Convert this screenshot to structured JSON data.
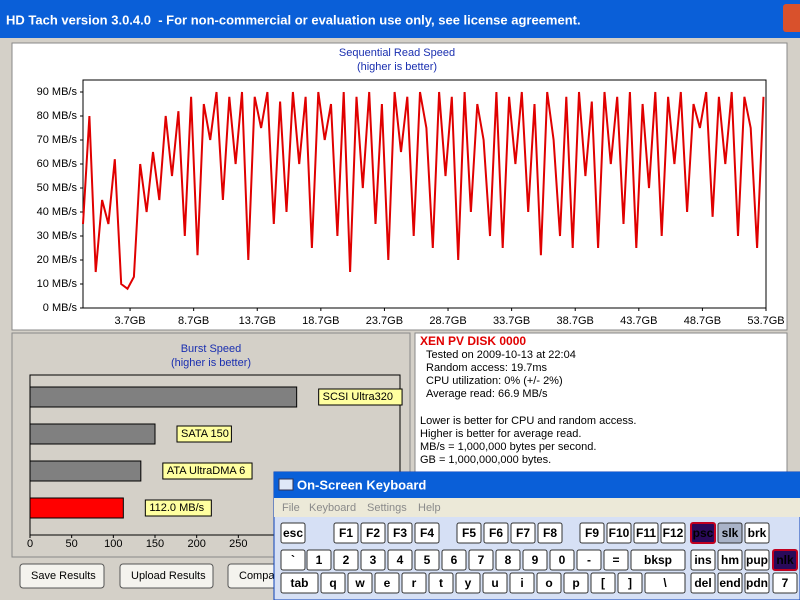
{
  "window": {
    "title": "HD Tach version 3.0.4.0  - For non-commercial or evaluation use only, see license agreement."
  },
  "chart_data": [
    {
      "type": "line",
      "title": "Sequential Read Speed",
      "subtitle": "(higher is better)",
      "color": "#e00000",
      "x": [
        0,
        0.5,
        1,
        1.5,
        2,
        2.5,
        3,
        3.5,
        4,
        4.5,
        5,
        5.5,
        6,
        6.5,
        7,
        7.5,
        8,
        8.5,
        9,
        9.5,
        10,
        10.5,
        11,
        11.5,
        12,
        12.5,
        13,
        13.5,
        14,
        14.5,
        15,
        15.5,
        16,
        16.5,
        17,
        17.5,
        18,
        18.5,
        19,
        19.5,
        20,
        20.5,
        21,
        21.5,
        22,
        22.5,
        23,
        23.5,
        24,
        24.5,
        25,
        25.5,
        26,
        26.5,
        27,
        27.5,
        28,
        28.5,
        29,
        29.5,
        30,
        30.5,
        31,
        31.5,
        32,
        32.5,
        33,
        33.5,
        34,
        34.5,
        35,
        35.5,
        36,
        36.5,
        37,
        37.5,
        38,
        38.5,
        39,
        39.5,
        40,
        40.5,
        41,
        41.5,
        42,
        42.5,
        43,
        43.5,
        44,
        44.5,
        45,
        45.5,
        46,
        46.5,
        47,
        47.5,
        48,
        48.5,
        49,
        49.5,
        50,
        50.5,
        51,
        51.5,
        52,
        52.5,
        53,
        53.5
      ],
      "values": [
        35,
        80,
        15,
        45,
        35,
        62,
        10,
        8,
        13,
        60,
        40,
        65,
        45,
        80,
        55,
        82,
        30,
        88,
        22,
        85,
        70,
        90,
        45,
        88,
        60,
        90,
        20,
        88,
        75,
        90,
        35,
        86,
        40,
        90,
        60,
        88,
        25,
        90,
        70,
        85,
        30,
        90,
        15,
        88,
        50,
        90,
        35,
        85,
        20,
        90,
        65,
        88,
        30,
        90,
        75,
        25,
        90,
        55,
        88,
        20,
        90,
        40,
        85,
        70,
        30,
        90,
        25,
        88,
        60,
        90,
        40,
        85,
        22,
        90,
        70,
        30,
        88,
        25,
        90,
        55,
        86,
        25,
        90,
        60,
        88,
        35,
        90,
        25,
        85,
        50,
        90,
        30,
        88,
        60,
        90,
        40,
        85,
        75,
        90,
        38,
        88,
        60,
        90,
        30,
        88,
        75,
        25,
        88
      ],
      "xlim": [
        0,
        53.7
      ],
      "xticks": [
        {
          "value": 3.7,
          "label": "3.7GB"
        },
        {
          "value": 8.7,
          "label": "8.7GB"
        },
        {
          "value": 13.7,
          "label": "13.7GB"
        },
        {
          "value": 18.7,
          "label": "18.7GB"
        },
        {
          "value": 23.7,
          "label": "23.7GB"
        },
        {
          "value": 28.7,
          "label": "28.7GB"
        },
        {
          "value": 33.7,
          "label": "33.7GB"
        },
        {
          "value": 38.7,
          "label": "38.7GB"
        },
        {
          "value": 43.7,
          "label": "43.7GB"
        },
        {
          "value": 48.7,
          "label": "48.7GB"
        },
        {
          "value": 53.7,
          "label": "53.7GB"
        }
      ],
      "ylim": [
        0,
        95
      ],
      "yticks": [
        {
          "value": 0,
          "label": "0 MB/s"
        },
        {
          "value": 10,
          "label": "10 MB/s"
        },
        {
          "value": 20,
          "label": "20 MB/s"
        },
        {
          "value": 30,
          "label": "30 MB/s"
        },
        {
          "value": 40,
          "label": "40 MB/s"
        },
        {
          "value": 50,
          "label": "50 MB/s"
        },
        {
          "value": 60,
          "label": "60 MB/s"
        },
        {
          "value": 70,
          "label": "70 MB/s"
        },
        {
          "value": 80,
          "label": "80 MB/s"
        },
        {
          "value": 90,
          "label": "90 MB/s"
        }
      ],
      "grid": false
    },
    {
      "type": "hbar",
      "title": "Burst Speed",
      "subtitle": "(higher is better)",
      "categories": [
        "SCSI Ultra320",
        "SATA 150",
        "ATA UltraDMA 6",
        null
      ],
      "values": [
        320,
        150,
        133,
        112
      ],
      "value_labels": [
        null,
        null,
        null,
        "112.0 MB/s"
      ],
      "colors": [
        "#808080",
        "#808080",
        "#808080",
        "#ff0000"
      ],
      "xlim": [
        0,
        444
      ],
      "xticks": [
        0,
        50,
        100,
        150,
        200,
        250
      ],
      "grid": false
    }
  ],
  "info": {
    "drive": "XEN PV DISK 0000",
    "results": [
      "Tested on 2009-10-13 at 22:04",
      "Random access: 19.7ms",
      "CPU utilization: 0% (+/- 2%)",
      "Average read: 66.9 MB/s"
    ],
    "notes": [
      "Lower is better for CPU and random access.",
      "Higher is better for average read.",
      "MB/s = 1,000,000 bytes per second.",
      "GB = 1,000,000,000 bytes."
    ]
  },
  "buttons": [
    "Save Results",
    "Upload Results",
    "Compar"
  ],
  "keyboard": {
    "title": "On-Screen Keyboard",
    "menu": [
      "File",
      "Keyboard",
      "Settings",
      "Help"
    ],
    "rows": [
      [
        "esc",
        "F1",
        "F2",
        "F3",
        "F4",
        "F5",
        "F6",
        "F7",
        "F8",
        "F9",
        "F10",
        "F11",
        "F12",
        "psc",
        "slk",
        "brk"
      ],
      [
        "`",
        "1",
        "2",
        "3",
        "4",
        "5",
        "6",
        "7",
        "8",
        "9",
        "0",
        "-",
        "=",
        "bksp",
        "ins",
        "hm",
        "pup",
        "nlk"
      ],
      [
        "tab",
        "q",
        "w",
        "e",
        "r",
        "t",
        "y",
        "u",
        "i",
        "o",
        "p",
        "[",
        "]",
        "\\",
        "del",
        "end",
        "pdn",
        "7"
      ]
    ]
  }
}
